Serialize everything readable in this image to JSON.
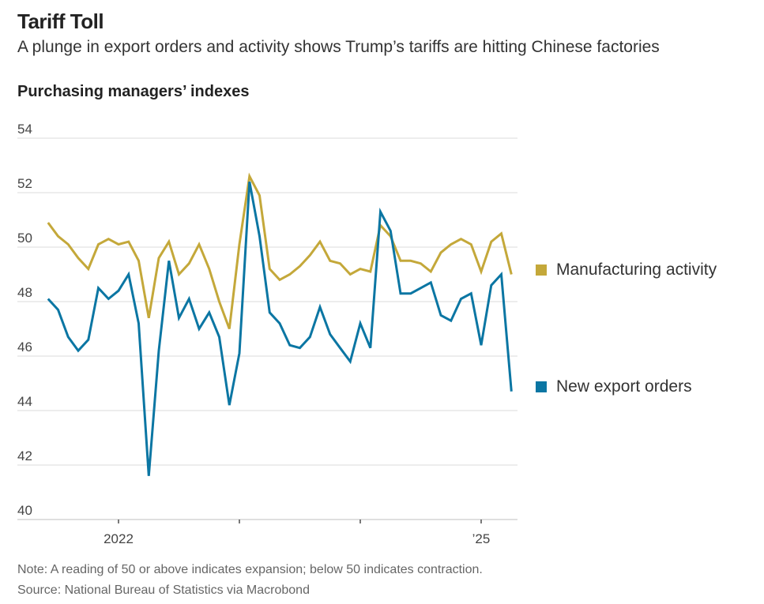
{
  "title": "Tariff Toll",
  "subtitle": "A plunge in export orders and activity shows Trump’s tariffs are hitting Chinese factories",
  "note": "Note: A reading of 50 or above indicates expansion; below 50 indicates contraction.",
  "source": "Source: National Bureau of Statistics via Macrobond",
  "chart_data": {
    "type": "line",
    "title": "Purchasing managers’ indexes",
    "ylim": [
      40,
      54
    ],
    "yticks": [
      40,
      42,
      44,
      46,
      48,
      50,
      52,
      54
    ],
    "ytick_labels": [
      "40",
      "42",
      "44",
      "46",
      "48",
      "50",
      "52",
      "54"
    ],
    "xticks": [
      {
        "date": "2022-01",
        "label": "2022"
      },
      {
        "date": "2023-01",
        "label": ""
      },
      {
        "date": "2024-01",
        "label": ""
      },
      {
        "date": "2025-01",
        "label": "’25"
      }
    ],
    "x_start": "2021-06",
    "x_end": "2025-04",
    "grid": true,
    "legend_placement": "right",
    "series": [
      {
        "name": "Manufacturing activity",
        "color": "#c4a83a",
        "values": [
          50.9,
          50.4,
          50.1,
          49.6,
          49.2,
          50.1,
          50.3,
          50.1,
          50.2,
          49.5,
          47.4,
          49.6,
          50.2,
          49.0,
          49.4,
          50.1,
          49.2,
          48.0,
          47.0,
          50.1,
          52.6,
          51.9,
          49.2,
          48.8,
          49.0,
          49.3,
          49.7,
          50.2,
          49.5,
          49.4,
          49.0,
          49.2,
          49.1,
          50.8,
          50.4,
          49.5,
          49.5,
          49.4,
          49.1,
          49.8,
          50.1,
          50.3,
          50.1,
          49.1,
          50.2,
          50.5,
          49.0
        ]
      },
      {
        "name": "New export orders",
        "color": "#0b76a3",
        "values": [
          48.1,
          47.7,
          46.7,
          46.2,
          46.6,
          48.5,
          48.1,
          48.4,
          49.0,
          47.2,
          41.6,
          46.2,
          49.5,
          47.4,
          48.1,
          47.0,
          47.6,
          46.7,
          44.2,
          46.1,
          52.4,
          50.4,
          47.6,
          47.2,
          46.4,
          46.3,
          46.7,
          47.8,
          46.8,
          46.3,
          45.8,
          47.2,
          46.3,
          51.3,
          50.6,
          48.3,
          48.3,
          48.5,
          48.7,
          47.5,
          47.3,
          48.1,
          48.3,
          46.4,
          48.6,
          49.0,
          44.7
        ]
      }
    ]
  }
}
